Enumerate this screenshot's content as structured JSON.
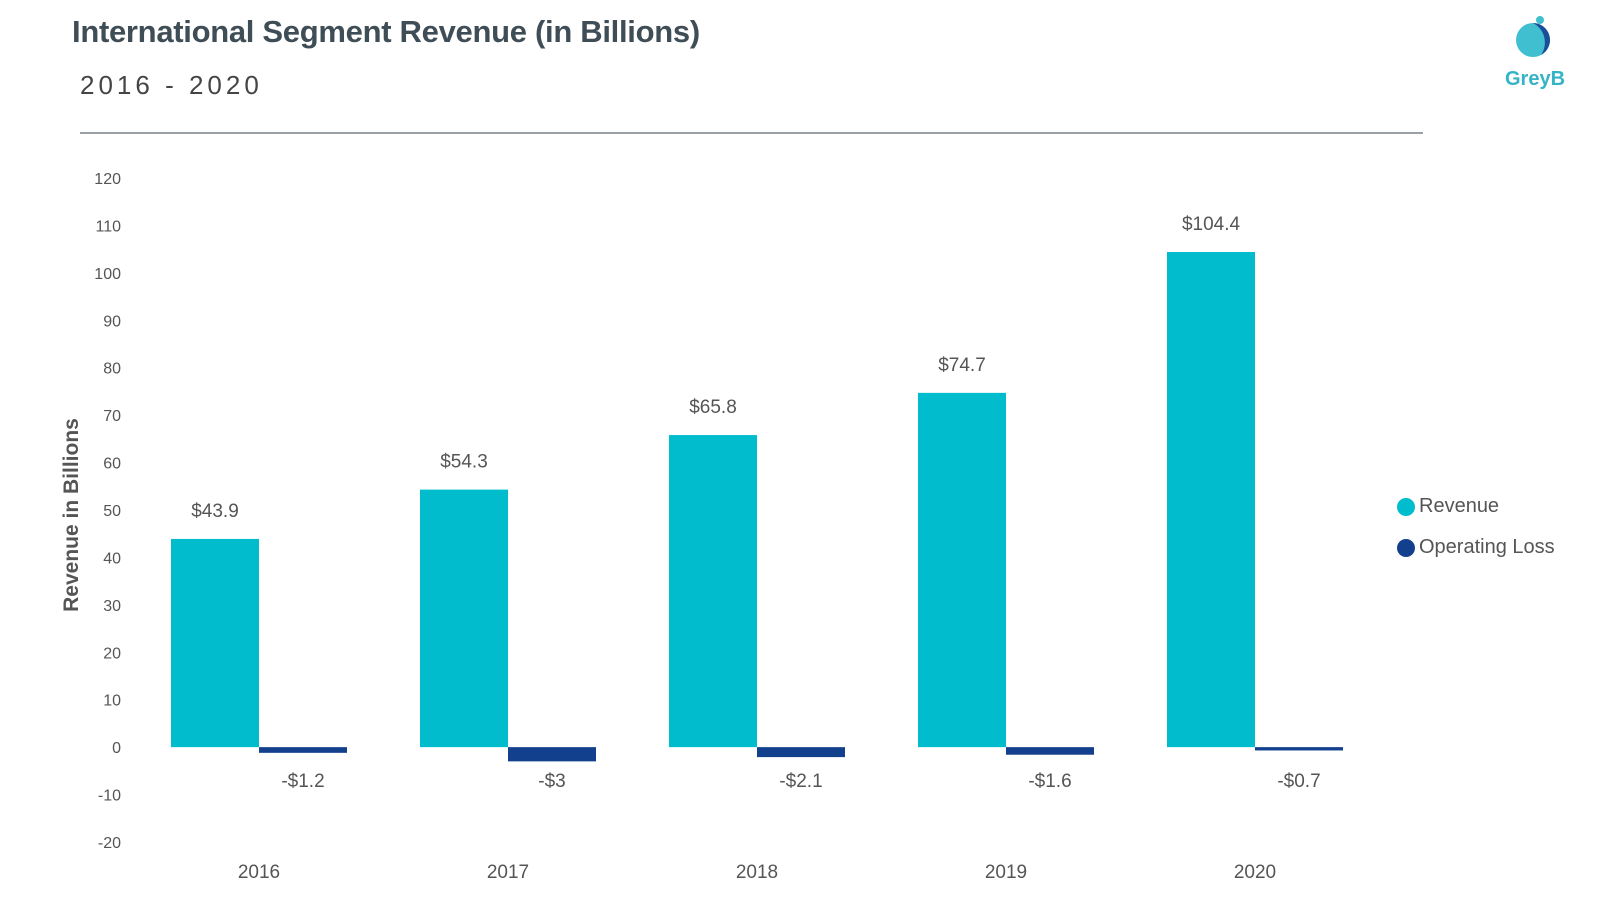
{
  "header": {
    "title": "International Segment Revenue (in Billions)",
    "subtitle": "2016 - 2020",
    "brand": "GreyB"
  },
  "colors": {
    "revenue": "#00bccc",
    "operating_loss": "#12408c",
    "brand": "#35b4c6"
  },
  "chart_data": {
    "type": "bar",
    "categories": [
      "2016",
      "2017",
      "2018",
      "2019",
      "2020"
    ],
    "series": [
      {
        "name": "Revenue",
        "values": [
          43.9,
          54.3,
          65.8,
          74.7,
          104.4
        ],
        "labels": [
          "$43.9",
          "$54.3",
          "$65.8",
          "$74.7",
          "$104.4"
        ]
      },
      {
        "name": "Operating Loss",
        "values": [
          -1.2,
          -3,
          -2.1,
          -1.6,
          -0.7
        ],
        "labels": [
          "-$1.2",
          "-$3",
          "-$2.1",
          "-$1.6",
          "-$0.7"
        ]
      }
    ],
    "ylabel": "Revenue in Billions",
    "xlabel": "",
    "ylim": [
      -20,
      120
    ],
    "yticks": [
      120,
      110,
      100,
      90,
      80,
      70,
      60,
      50,
      40,
      30,
      20,
      10,
      0,
      -10,
      -20
    ],
    "grid": false,
    "legend_position": "right"
  }
}
